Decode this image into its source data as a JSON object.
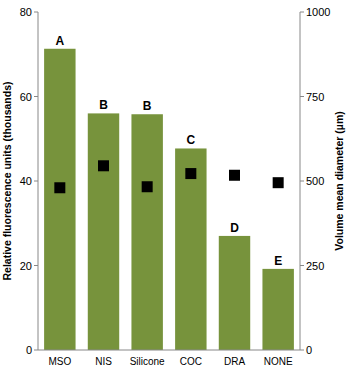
{
  "chart_data": {
    "type": "bar",
    "categories": [
      "MSO",
      "NIS",
      "Silicone",
      "COC",
      "DRA",
      "NONE"
    ],
    "series": [
      {
        "type": "bar",
        "color": "#77933c",
        "values": [
          71.3,
          56.0,
          55.8,
          47.7,
          27.0,
          19.2
        ]
      },
      {
        "type": "scatter",
        "marker": "square",
        "color": "#000000",
        "axis": "y2",
        "values": [
          480,
          545,
          483,
          522,
          517,
          495
        ]
      }
    ],
    "annotations": [
      "A",
      "B",
      "B",
      "C",
      "D",
      "E"
    ],
    "y_label": "Relative  fluorescence units (thousands)",
    "y2_label": "Volume mean diameter (µm)",
    "ylim": [
      0,
      80
    ],
    "yticks": [
      0,
      20,
      40,
      60,
      80
    ],
    "y2lim": [
      0,
      1000
    ],
    "y2ticks": [
      0,
      250,
      500,
      750,
      1000
    ],
    "grid": false
  }
}
